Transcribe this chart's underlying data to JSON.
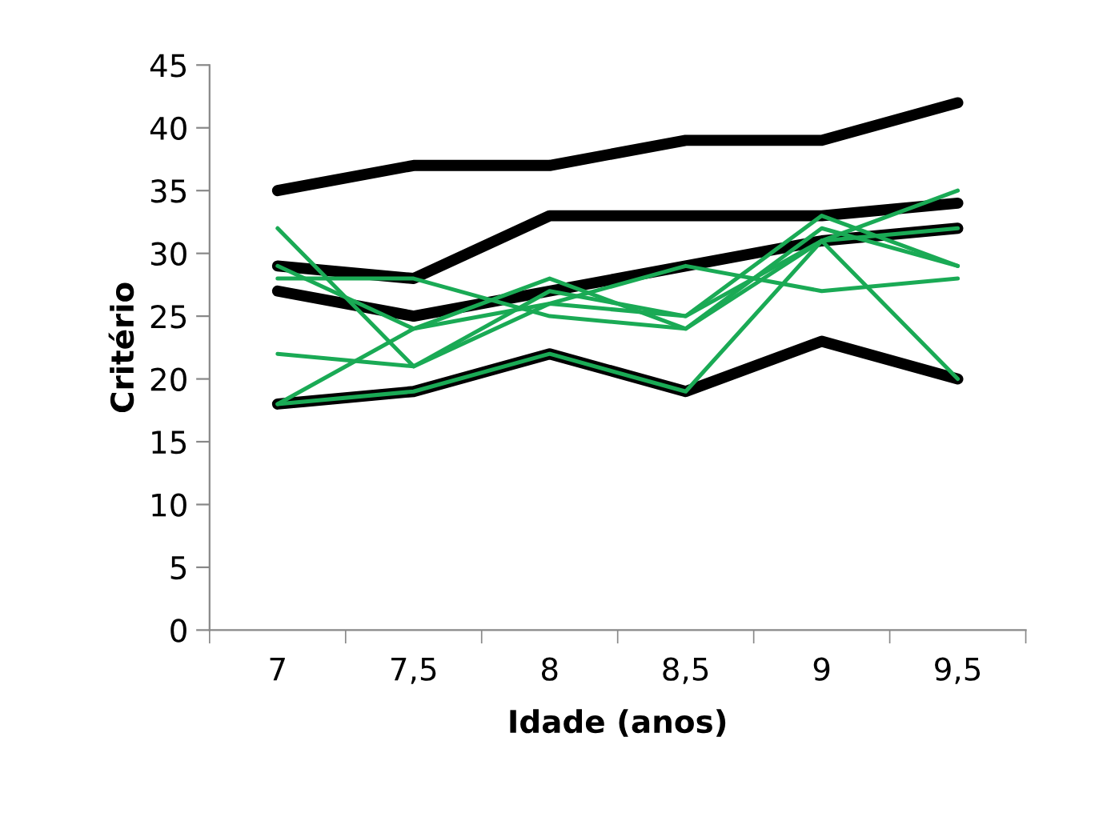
{
  "chart_data": {
    "type": "line",
    "xlabel": "Idade (anos)",
    "ylabel": "Critério",
    "categories": [
      "7",
      "7,5",
      "8",
      "8,5",
      "9",
      "9,5"
    ],
    "ylim": [
      0,
      45
    ],
    "yticks": [
      0,
      5,
      10,
      15,
      20,
      25,
      30,
      35,
      40,
      45
    ],
    "grid": false,
    "legend": false,
    "marker": "none",
    "line_style": "solid",
    "series": [
      {
        "color": "#000000",
        "values": [
          35,
          37,
          37,
          39,
          39,
          42
        ]
      },
      {
        "color": "#000000",
        "values": [
          29,
          28,
          33,
          33,
          33,
          34
        ]
      },
      {
        "color": "#000000",
        "values": [
          27,
          25,
          27,
          29,
          31,
          32
        ]
      },
      {
        "color": "#000000",
        "values": [
          18,
          19,
          22,
          19,
          23,
          20
        ]
      },
      {
        "color": "#1aaa55",
        "values": [
          32,
          21,
          27,
          25,
          33,
          29
        ]
      },
      {
        "color": "#1aaa55",
        "values": [
          29,
          24,
          28,
          24,
          32,
          29
        ]
      },
      {
        "color": "#1aaa55",
        "values": [
          28,
          28,
          25,
          24,
          31,
          35
        ]
      },
      {
        "color": "#1aaa55",
        "values": [
          22,
          21,
          26,
          29,
          27,
          28
        ]
      },
      {
        "color": "#1aaa55",
        "values": [
          18,
          24,
          26,
          25,
          31,
          32
        ]
      },
      {
        "color": "#1aaa55",
        "values": [
          18,
          19,
          22,
          19,
          31,
          20
        ]
      }
    ]
  }
}
